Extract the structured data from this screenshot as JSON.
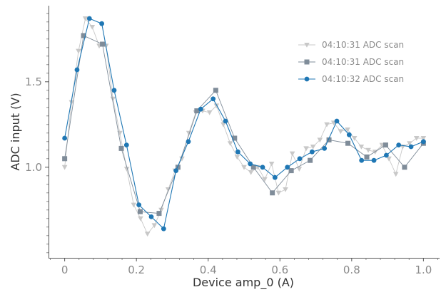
{
  "chart_data": {
    "type": "line",
    "xlabel": "Device amp_0 (A)",
    "ylabel": "ADC input (V)",
    "xlim": [
      -0.045,
      1.045
    ],
    "ylim": [
      0.47,
      1.945
    ],
    "xticks": [
      0,
      0.2,
      0.4,
      0.6,
      0.8,
      1.0
    ],
    "xtick_labels": [
      "0",
      "0.2",
      "0.4",
      "0.6",
      "0.8",
      "1.0"
    ],
    "yticks": [
      1.0,
      1.5
    ],
    "ytick_labels": [
      "1.0",
      "1.5"
    ],
    "grid": false,
    "legend_position": "top-right",
    "series": [
      {
        "name": "04:10:31 ADC scan",
        "color": "#c8c8c8",
        "marker": "triangle-down",
        "x": [
          0.0,
          0.0192,
          0.0385,
          0.0577,
          0.0769,
          0.0962,
          0.1154,
          0.1346,
          0.1538,
          0.1731,
          0.1923,
          0.2115,
          0.2308,
          0.25,
          0.2692,
          0.2885,
          0.3077,
          0.3269,
          0.3462,
          0.3654,
          0.3846,
          0.4038,
          0.4231,
          0.4423,
          0.4615,
          0.4808,
          0.5,
          0.5192,
          0.5385,
          0.5577,
          0.5769,
          0.5962,
          0.6154,
          0.6346,
          0.6538,
          0.6731,
          0.6923,
          0.7115,
          0.7308,
          0.75,
          0.7692,
          0.7885,
          0.8077,
          0.8269,
          0.8462,
          0.8654,
          0.8846,
          0.9038,
          0.9231,
          0.9423,
          0.9615,
          0.9808,
          1.0
        ],
        "y": [
          1.0,
          1.38,
          1.68,
          1.87,
          1.82,
          1.71,
          1.71,
          1.4,
          1.2,
          0.99,
          0.78,
          0.7,
          0.61,
          0.66,
          0.75,
          0.87,
          0.98,
          1.05,
          1.2,
          1.32,
          1.33,
          1.32,
          1.36,
          1.25,
          1.14,
          1.06,
          1.0,
          0.97,
          1.0,
          0.93,
          1.02,
          0.85,
          0.87,
          1.08,
          0.99,
          1.11,
          1.12,
          1.16,
          1.25,
          1.26,
          1.21,
          1.22,
          1.17,
          1.12,
          1.1,
          1.09,
          1.13,
          1.05,
          0.96,
          1.12,
          1.14,
          1.17,
          1.17
        ]
      },
      {
        "name": "04:10:31 ADC scan",
        "color": "#7f8c99",
        "marker": "square",
        "x": [
          0.0,
          0.0526,
          0.1053,
          0.1579,
          0.2105,
          0.2632,
          0.3158,
          0.3684,
          0.4211,
          0.4737,
          0.5263,
          0.5789,
          0.6316,
          0.6842,
          0.7368,
          0.7895,
          0.8421,
          0.8947,
          0.9474,
          1.0
        ],
        "y": [
          1.05,
          1.77,
          1.72,
          1.11,
          0.74,
          0.73,
          1.0,
          1.33,
          1.45,
          1.17,
          1.0,
          0.85,
          0.98,
          1.04,
          1.16,
          1.14,
          1.06,
          1.13,
          1.0,
          1.14
        ]
      },
      {
        "name": "04:10:32 ADC scan",
        "color": "#1f77b4",
        "marker": "circle",
        "x": [
          0.0,
          0.0345,
          0.069,
          0.1034,
          0.1379,
          0.1724,
          0.2069,
          0.2414,
          0.2759,
          0.3103,
          0.3448,
          0.3793,
          0.4138,
          0.4483,
          0.4828,
          0.5172,
          0.5517,
          0.5862,
          0.6207,
          0.6552,
          0.6897,
          0.7241,
          0.7586,
          0.7931,
          0.8276,
          0.8621,
          0.8966,
          0.931,
          0.9655,
          1.0
        ],
        "y": [
          1.17,
          1.57,
          1.87,
          1.84,
          1.45,
          1.13,
          0.78,
          0.71,
          0.64,
          0.98,
          1.15,
          1.34,
          1.4,
          1.27,
          1.09,
          1.02,
          1.0,
          0.94,
          1.0,
          1.05,
          1.09,
          1.11,
          1.27,
          1.19,
          1.04,
          1.04,
          1.07,
          1.13,
          1.12,
          1.15
        ]
      }
    ]
  }
}
